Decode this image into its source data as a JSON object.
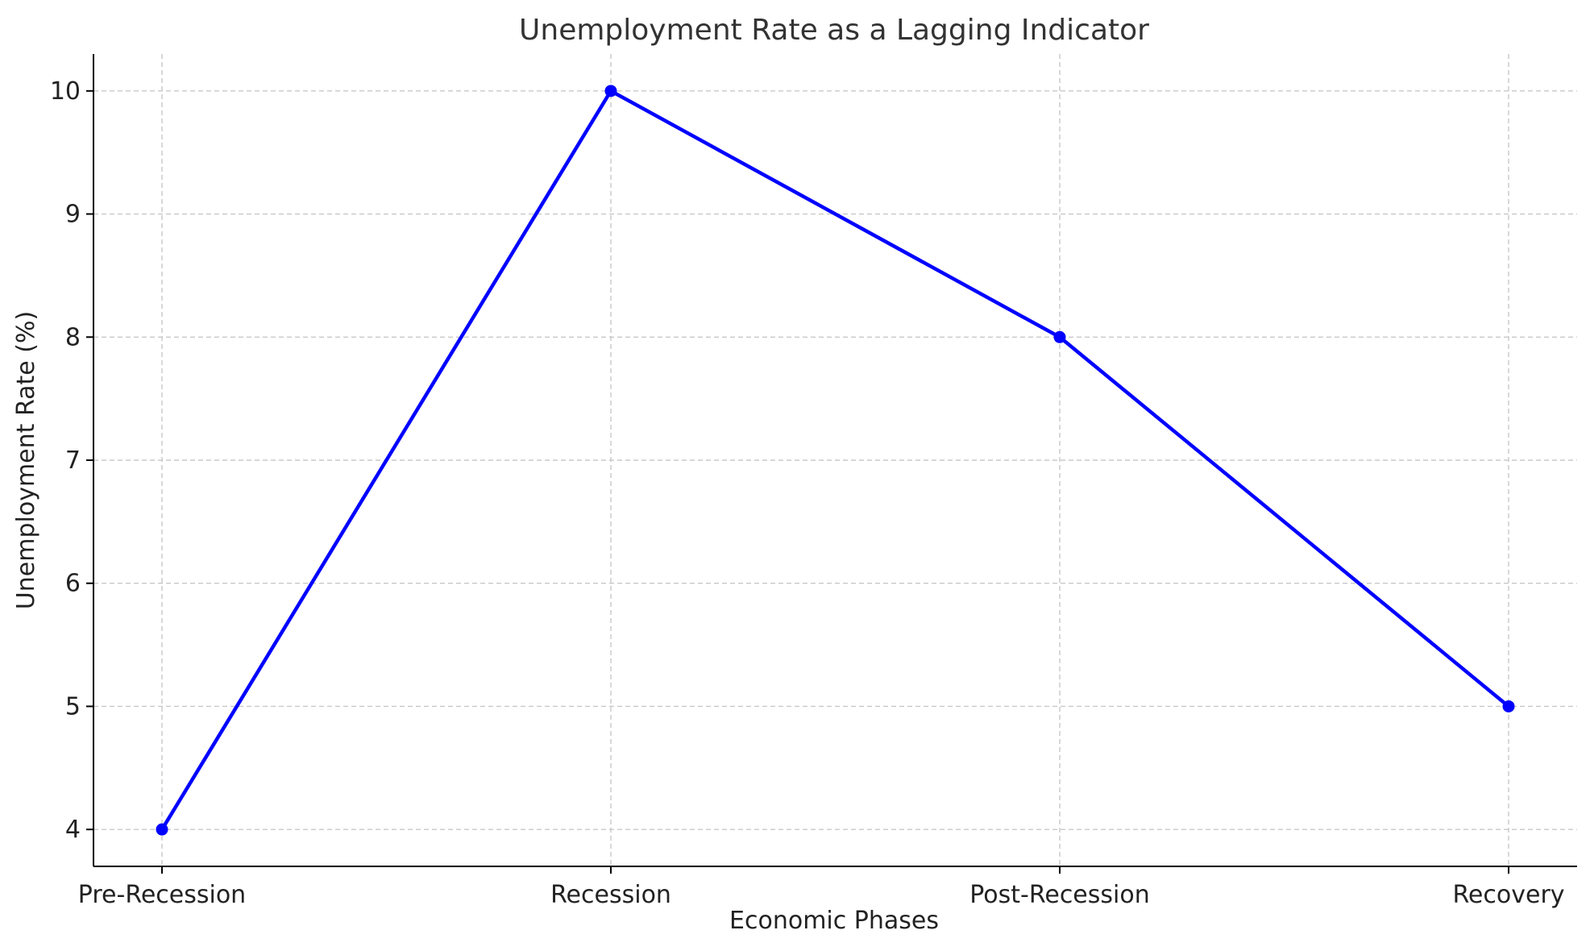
{
  "chart_data": {
    "type": "line",
    "title": "Unemployment Rate as a Lagging Indicator",
    "xlabel": "Economic Phases",
    "ylabel": "Unemployment Rate (%)",
    "categories": [
      "Pre-Recession",
      "Recession",
      "Post-Recession",
      "Recovery"
    ],
    "series": [
      {
        "values": [
          4,
          10,
          8,
          5
        ],
        "color": "#0000ff",
        "marker": "circle"
      }
    ],
    "yticks": [
      4,
      5,
      6,
      7,
      8,
      9,
      10
    ],
    "ylim": [
      3.7,
      10.3
    ],
    "grid": true,
    "legend": "none"
  }
}
